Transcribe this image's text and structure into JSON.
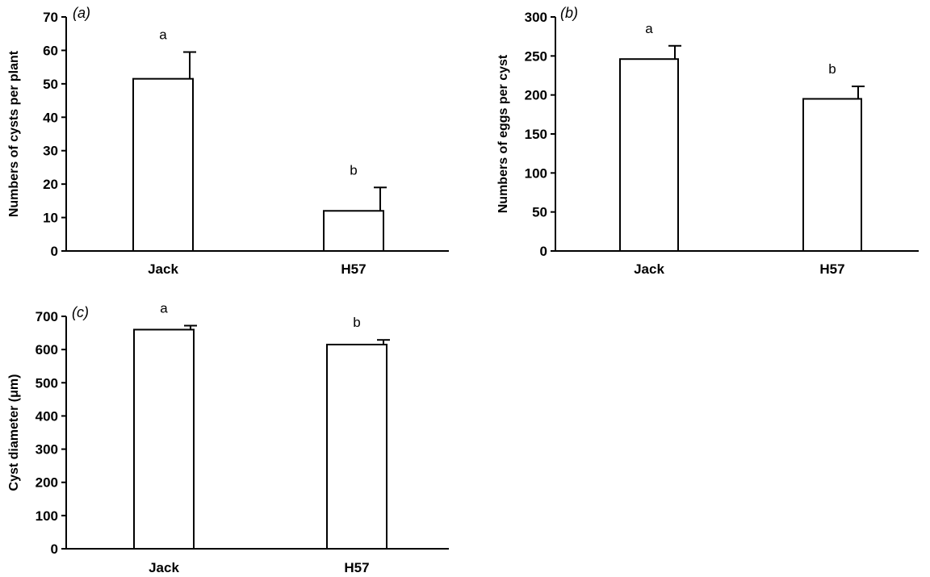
{
  "chart_data": [
    {
      "type": "bar",
      "panel_label": "(a)",
      "categories": [
        "Jack",
        "H57"
      ],
      "values": [
        51.5,
        12
      ],
      "errors": [
        8,
        7
      ],
      "significance": [
        "a",
        "b"
      ],
      "ylabel": "Numbers of cysts per plant",
      "ylim": [
        0,
        70
      ],
      "yticks": [
        0,
        10,
        20,
        30,
        40,
        50,
        60,
        70
      ],
      "grid": false,
      "bar_color": "#ffffff",
      "edge_color": "#000000"
    },
    {
      "type": "bar",
      "panel_label": "(b)",
      "categories": [
        "Jack",
        "H57"
      ],
      "values": [
        246,
        195
      ],
      "errors": [
        17,
        16
      ],
      "significance": [
        "a",
        "b"
      ],
      "ylabel": "Numbers of eggs per cyst",
      "ylim": [
        0,
        300
      ],
      "yticks": [
        0,
        50,
        100,
        150,
        200,
        250,
        300
      ],
      "grid": false,
      "bar_color": "#ffffff",
      "edge_color": "#000000"
    },
    {
      "type": "bar",
      "panel_label": "(c)",
      "categories": [
        "Jack",
        "H57"
      ],
      "values": [
        660,
        615
      ],
      "errors": [
        12,
        14
      ],
      "significance": [
        "a",
        "b"
      ],
      "ylabel": "Cyst diameter (μm)",
      "ylim": [
        0,
        700
      ],
      "yticks": [
        0,
        100,
        200,
        300,
        400,
        500,
        600,
        700
      ],
      "grid": false,
      "bar_color": "#ffffff",
      "edge_color": "#000000"
    }
  ]
}
